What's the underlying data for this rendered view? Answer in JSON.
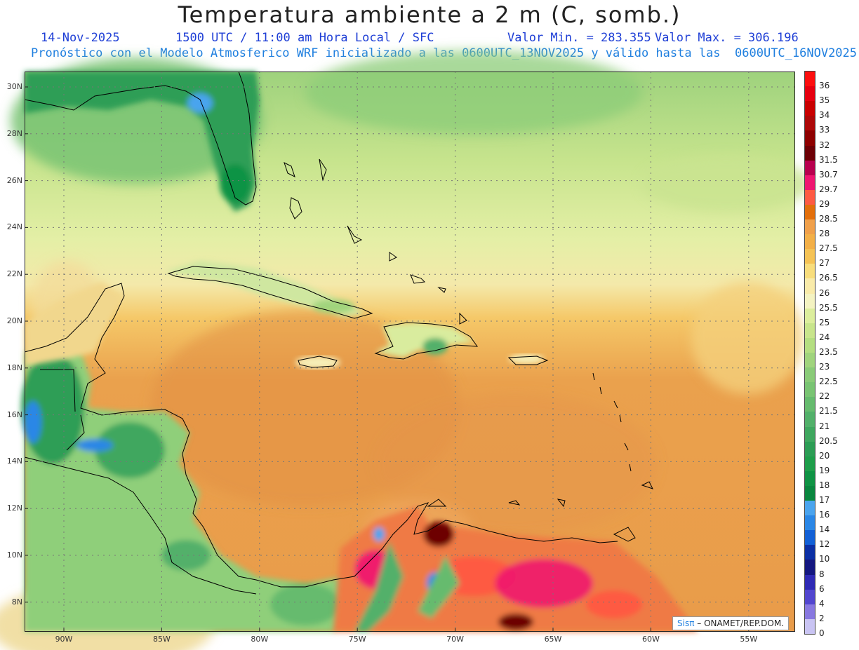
{
  "header": {
    "title": "Temperatura ambiente a 2 m (C, somb.)",
    "date": "14-Nov-2025",
    "time_info": "1500 UTC / 11:00 am Hora Local / SFC",
    "min_value": "Valor Min. = 283.355",
    "max_value": "Valor Max. = 306.196",
    "model_info": "Pronóstico con el Modelo Atmosferico WRF inicializado a las 0600UTC_13NOV2025 y válido hasta las  0600UTC_16NOV2025"
  },
  "map": {
    "lon_labels": [
      "90W",
      "85W",
      "80W",
      "75W",
      "70W",
      "65W",
      "60W",
      "55W"
    ],
    "lat_labels": [
      "30N",
      "28N",
      "26N",
      "24N",
      "22N",
      "20N",
      "18N",
      "16N",
      "14N",
      "12N",
      "10N",
      "8N"
    ],
    "credit_brand": "Sisπ",
    "credit_text": " – ONAMET/REP.DOM."
  },
  "colorbar": {
    "labels": [
      "36",
      "35",
      "34",
      "33",
      "32",
      "31.5",
      "30.7",
      "29.7",
      "29",
      "28.5",
      "28",
      "27.5",
      "27",
      "26.5",
      "26",
      "25.5",
      "25",
      "24",
      "23.5",
      "23",
      "22.5",
      "22",
      "21.5",
      "21",
      "20.5",
      "20",
      "19",
      "18",
      "17",
      "16",
      "14",
      "12",
      "10",
      "8",
      "6",
      "4",
      "2",
      "0"
    ],
    "colors": [
      "#fd0f0f",
      "#e60010",
      "#c90000",
      "#ad0808",
      "#8e0000",
      "#6d0006",
      "#b8004e",
      "#ef1570",
      "#fe5a43",
      "#e36f0b",
      "#f0a04b",
      "#f3b048",
      "#f5c356",
      "#f8dd7c",
      "#f9ebaa",
      "#f4f3c2",
      "#dcee9d",
      "#c8e58c",
      "#b4de81",
      "#a0d47d",
      "#8acb78",
      "#79c473",
      "#66bb6e",
      "#52b06a",
      "#3fa75f",
      "#2c9d55",
      "#1e9e4a",
      "#0f9344",
      "#09863e",
      "#4aa4ee",
      "#2a87e6",
      "#1260d6",
      "#0b2fa4",
      "#141780",
      "#2f2ab5",
      "#5246cf",
      "#8878e0",
      "#c9c4f3"
    ]
  }
}
